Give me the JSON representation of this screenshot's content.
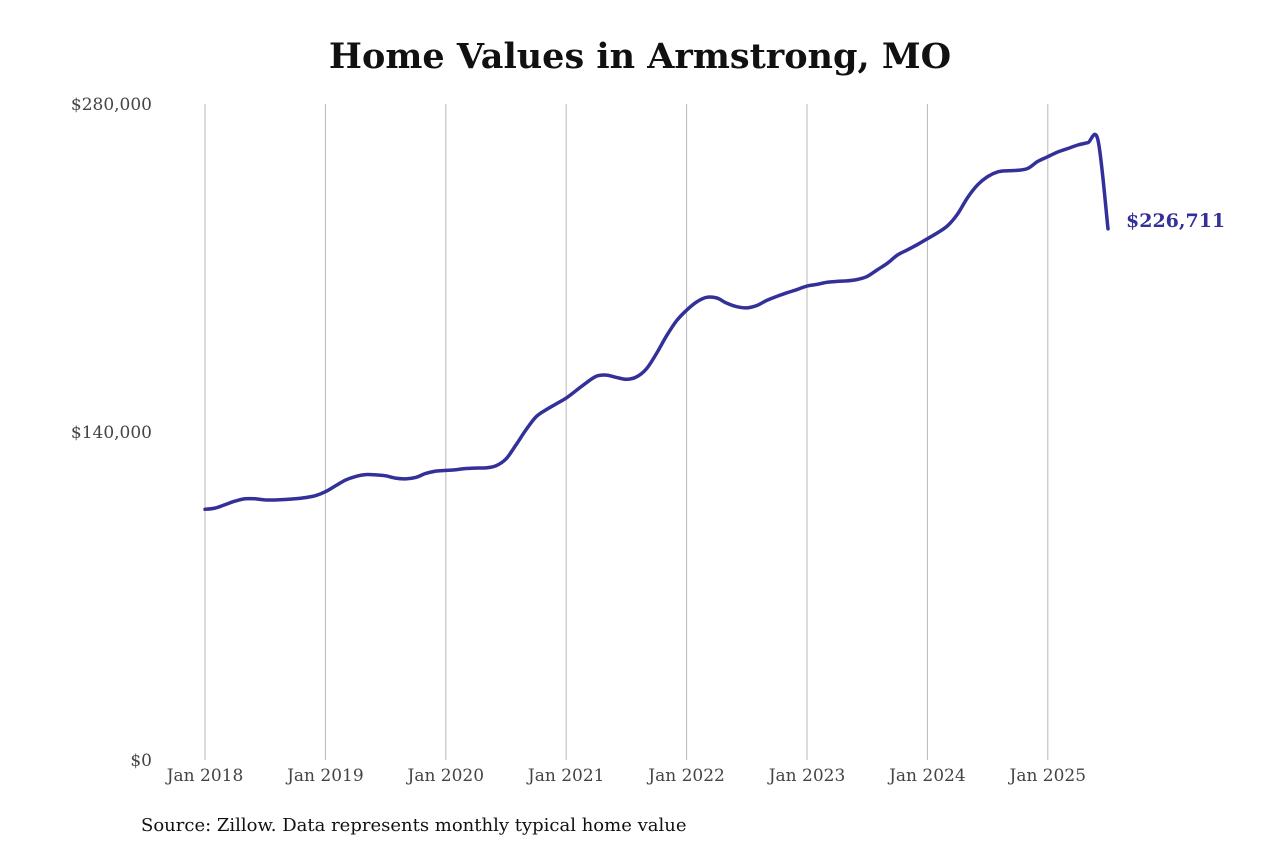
{
  "colors": {
    "line": "#33309a",
    "grid": "#b8b8b8",
    "text": "#111111",
    "tick_text": "#444444"
  },
  "chart_data": {
    "type": "line",
    "title": "Home Values in Armstrong, MO",
    "xlabel": "",
    "ylabel": "",
    "ylim": [
      0,
      280000
    ],
    "y_ticks": [
      {
        "value": 0,
        "label": "$0"
      },
      {
        "value": 140000,
        "label": "$140,000"
      },
      {
        "value": 280000,
        "label": "$280,000"
      }
    ],
    "x_ticks": [
      {
        "value": 2018.0,
        "label": "Jan 2018"
      },
      {
        "value": 2019.0,
        "label": "Jan 2019"
      },
      {
        "value": 2020.0,
        "label": "Jan 2020"
      },
      {
        "value": 2021.0,
        "label": "Jan 2021"
      },
      {
        "value": 2022.0,
        "label": "Jan 2022"
      },
      {
        "value": 2023.0,
        "label": "Jan 2023"
      },
      {
        "value": 2024.0,
        "label": "Jan 2024"
      },
      {
        "value": 2025.0,
        "label": "Jan 2025"
      }
    ],
    "xlim": [
      2018.0,
      2025.5
    ],
    "grid": "vertical",
    "end_label": "$226,711",
    "series": [
      {
        "x": [
          2018.0,
          2018.083,
          2018.167,
          2018.25,
          2018.333,
          2018.417,
          2018.5,
          2018.583,
          2018.667,
          2018.75,
          2018.833,
          2018.917,
          2019.0,
          2019.083,
          2019.167,
          2019.25,
          2019.333,
          2019.417,
          2019.5,
          2019.583,
          2019.667,
          2019.75,
          2019.833,
          2019.917,
          2020.0,
          2020.083,
          2020.167,
          2020.25,
          2020.333,
          2020.417,
          2020.5,
          2020.583,
          2020.667,
          2020.75,
          2020.833,
          2020.917,
          2021.0,
          2021.083,
          2021.167,
          2021.25,
          2021.333,
          2021.417,
          2021.5,
          2021.583,
          2021.667,
          2021.75,
          2021.833,
          2021.917,
          2022.0,
          2022.083,
          2022.167,
          2022.25,
          2022.333,
          2022.417,
          2022.5,
          2022.583,
          2022.667,
          2022.75,
          2022.833,
          2022.917,
          2023.0,
          2023.083,
          2023.167,
          2023.25,
          2023.333,
          2023.417,
          2023.5,
          2023.583,
          2023.667,
          2023.75,
          2023.833,
          2023.917,
          2024.0,
          2024.083,
          2024.167,
          2024.25,
          2024.333,
          2024.417,
          2024.5,
          2024.583,
          2024.667,
          2024.75,
          2024.833,
          2024.917,
          2025.0,
          2025.083,
          2025.167,
          2025.25,
          2025.333,
          2025.417,
          2025.5
        ],
        "y": [
          107000,
          107500,
          109000,
          110500,
          111500,
          111500,
          111000,
          111000,
          111200,
          111500,
          112000,
          112800,
          114500,
          117000,
          119500,
          121000,
          121800,
          121700,
          121300,
          120300,
          120000,
          120600,
          122300,
          123300,
          123600,
          123900,
          124400,
          124600,
          124700,
          125600,
          128500,
          134500,
          141000,
          146500,
          149500,
          152000,
          154500,
          157700,
          161000,
          163800,
          164300,
          163300,
          162500,
          163500,
          167000,
          173500,
          181000,
          187500,
          192000,
          195500,
          197500,
          197200,
          195000,
          193500,
          193000,
          194000,
          196200,
          197900,
          199400,
          200800,
          202300,
          203000,
          203900,
          204300,
          204500,
          205100,
          206400,
          209200,
          212000,
          215500,
          217700,
          220000,
          222500,
          225000,
          228000,
          233000,
          240000,
          245500,
          249000,
          251000,
          251500,
          251700,
          252500,
          255500,
          257500,
          259500,
          261000,
          262500,
          263500,
          264500,
          226711
        ]
      }
    ]
  },
  "source": "Source: Zillow. Data represents monthly typical home value"
}
